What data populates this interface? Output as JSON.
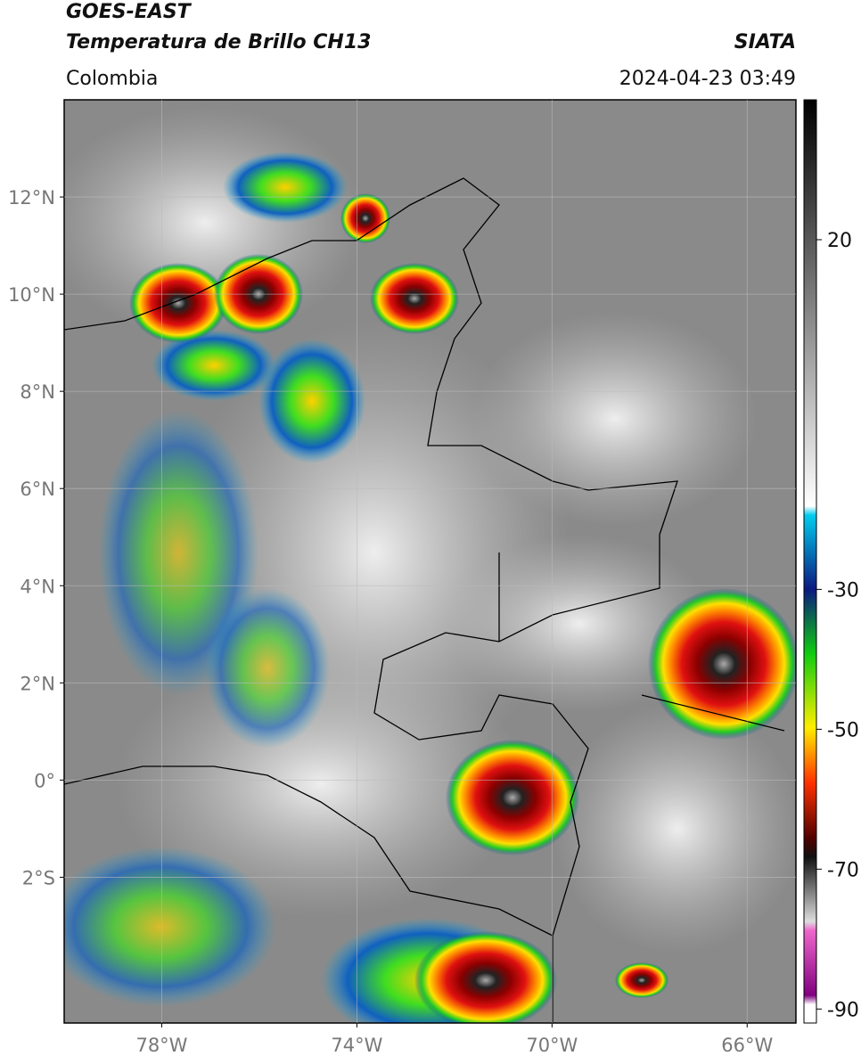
{
  "header": {
    "title": "GOES-EAST",
    "subtitle": "Temperatura de Brillo CH13",
    "region": "Colombia",
    "source": "SIATA",
    "datetime": "2024-04-23 03:49"
  },
  "map": {
    "lon_lim": [
      -80,
      -65
    ],
    "lat_lim": [
      -5,
      14
    ],
    "grid": true,
    "lon_ticks": [
      {
        "value": -78,
        "label": "78°W"
      },
      {
        "value": -74,
        "label": "74°W"
      },
      {
        "value": -70,
        "label": "70°W"
      },
      {
        "value": -66,
        "label": "66°W"
      }
    ],
    "lat_ticks": [
      {
        "value": 12,
        "label": "12°N"
      },
      {
        "value": 10,
        "label": "10°N"
      },
      {
        "value": 8,
        "label": "8°N"
      },
      {
        "value": 6,
        "label": "6°N"
      },
      {
        "value": 4,
        "label": "4°N"
      },
      {
        "value": 2,
        "label": "2°N"
      },
      {
        "value": 0,
        "label": "0°"
      },
      {
        "value": -2,
        "label": "2°S"
      }
    ]
  },
  "colorbar": {
    "lim": [
      -92,
      40
    ],
    "ticks": [
      20,
      -30,
      -50,
      -70,
      -90
    ]
  }
}
